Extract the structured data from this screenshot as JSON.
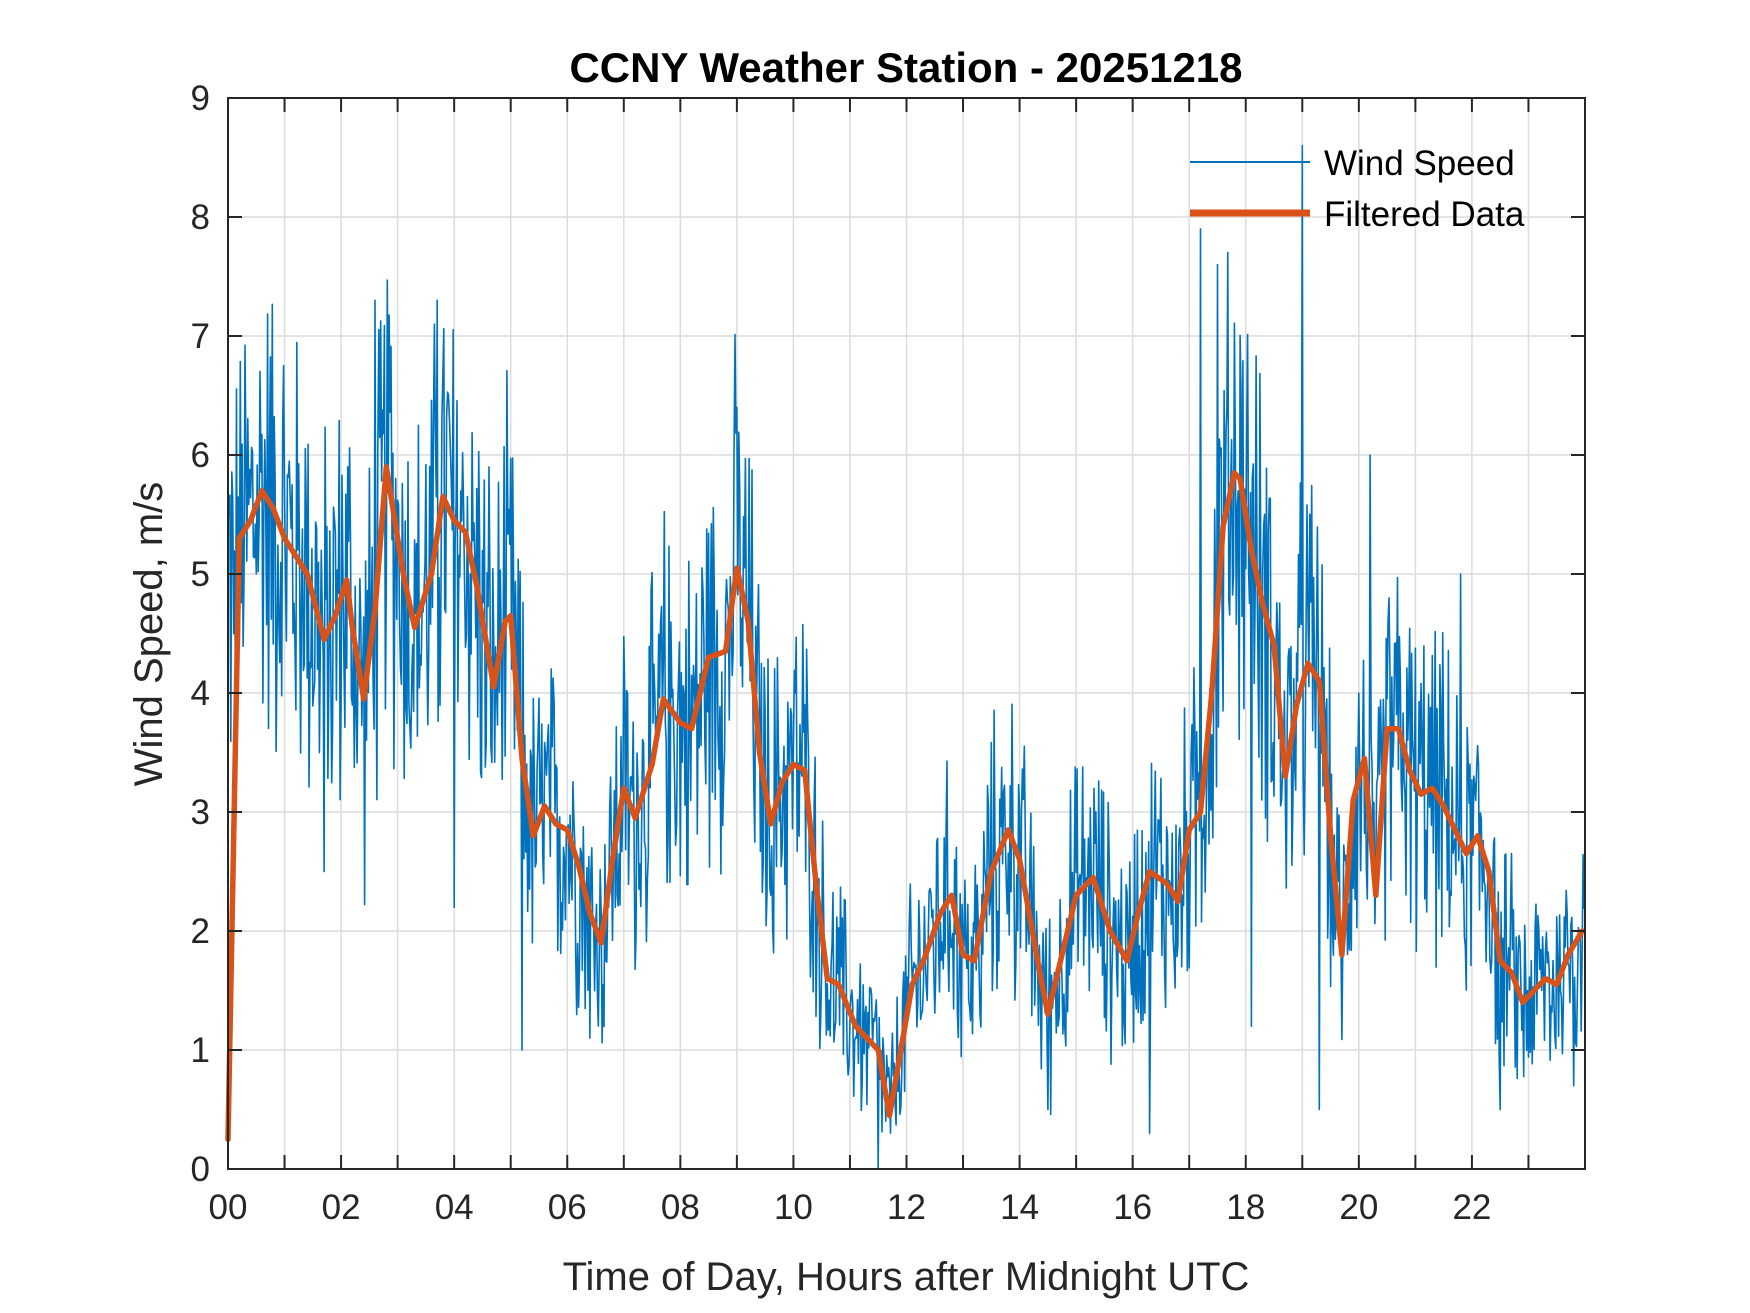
{
  "chart_data": {
    "type": "line",
    "title": "CCNY Weather Station - 20251218",
    "xlabel": "Time of Day, Hours after Midnight UTC",
    "ylabel": "Wind Speed, m/s",
    "xlim": [
      0,
      24
    ],
    "ylim": [
      0,
      9
    ],
    "grid": true,
    "legend_position": "top-right",
    "xticks": [
      0,
      2,
      4,
      6,
      8,
      10,
      12,
      14,
      16,
      18,
      20,
      22
    ],
    "xtick_labels": [
      "00",
      "02",
      "04",
      "06",
      "08",
      "10",
      "12",
      "14",
      "16",
      "18",
      "20",
      "22"
    ],
    "yticks": [
      0,
      1,
      2,
      3,
      4,
      5,
      6,
      7,
      8,
      9
    ],
    "ytick_labels": [
      "0",
      "1",
      "2",
      "3",
      "4",
      "5",
      "6",
      "7",
      "8",
      "9"
    ],
    "series": [
      {
        "name": "Wind Speed",
        "color": "#0072BD",
        "kind": "raw",
        "note": "High-frequency raw samples fluctuating around the filtered curve; approx. peaks listed",
        "peaks": [
          [
            2.6,
            7.3
          ],
          [
            3.7,
            7.3
          ],
          [
            9.0,
            6.4
          ],
          [
            17.2,
            7.9
          ],
          [
            17.5,
            7.6
          ],
          [
            18.1,
            7.3
          ],
          [
            19.0,
            8.6
          ],
          [
            20.2,
            6.0
          ],
          [
            21.8,
            5.0
          ]
        ],
        "troughs": [
          [
            0.1,
            4.5
          ],
          [
            1.7,
            2.5
          ],
          [
            4.0,
            2.2
          ],
          [
            5.2,
            1.0
          ],
          [
            6.4,
            1.1
          ],
          [
            11.5,
            0.0
          ],
          [
            13.3,
            1.3
          ],
          [
            14.5,
            0.5
          ],
          [
            16.3,
            0.3
          ],
          [
            18.1,
            1.2
          ],
          [
            19.3,
            0.5
          ],
          [
            22.5,
            0.5
          ],
          [
            23.8,
            0.7
          ]
        ]
      },
      {
        "name": "Filtered Data",
        "color": "#D95319",
        "kind": "filtered",
        "x": [
          0.0,
          0.2,
          0.4,
          0.6,
          0.8,
          1.0,
          1.2,
          1.4,
          1.7,
          1.9,
          2.1,
          2.2,
          2.4,
          2.6,
          2.8,
          2.9,
          3.1,
          3.3,
          3.6,
          3.8,
          4.0,
          4.2,
          4.4,
          4.7,
          4.9,
          5.0,
          5.2,
          5.4,
          5.6,
          5.8,
          6.0,
          6.2,
          6.4,
          6.6,
          6.8,
          7.0,
          7.2,
          7.5,
          7.7,
          8.0,
          8.2,
          8.5,
          8.8,
          9.0,
          9.2,
          9.4,
          9.6,
          9.8,
          10.0,
          10.2,
          10.4,
          10.6,
          10.8,
          11.1,
          11.3,
          11.5,
          11.7,
          11.9,
          12.1,
          12.3,
          12.6,
          12.8,
          13.0,
          13.2,
          13.5,
          13.8,
          14.0,
          14.3,
          14.5,
          14.8,
          15.0,
          15.3,
          15.6,
          15.9,
          16.1,
          16.3,
          16.6,
          16.8,
          17.0,
          17.2,
          17.4,
          17.6,
          17.8,
          17.9,
          18.1,
          18.3,
          18.5,
          18.7,
          18.9,
          19.1,
          19.3,
          19.5,
          19.7,
          19.9,
          20.1,
          20.3,
          20.5,
          20.7,
          20.9,
          21.1,
          21.3,
          21.5,
          21.7,
          21.9,
          22.1,
          22.3,
          22.5,
          22.7,
          22.9,
          23.1,
          23.3,
          23.5,
          23.7,
          23.95
        ],
        "y": [
          0.25,
          5.3,
          5.45,
          5.7,
          5.55,
          5.3,
          5.15,
          5.0,
          4.45,
          4.65,
          4.95,
          4.55,
          3.95,
          4.7,
          5.9,
          5.6,
          5.0,
          4.55,
          5.0,
          5.65,
          5.45,
          5.35,
          4.9,
          4.05,
          4.6,
          4.65,
          3.45,
          2.8,
          3.05,
          2.9,
          2.85,
          2.55,
          2.15,
          1.9,
          2.6,
          3.2,
          2.95,
          3.4,
          3.95,
          3.75,
          3.7,
          4.3,
          4.35,
          5.05,
          4.6,
          3.5,
          2.9,
          3.25,
          3.4,
          3.35,
          2.4,
          1.6,
          1.55,
          1.2,
          1.1,
          1.0,
          0.45,
          1.0,
          1.55,
          1.75,
          2.15,
          2.3,
          1.8,
          1.75,
          2.5,
          2.85,
          2.6,
          1.8,
          1.3,
          1.9,
          2.3,
          2.45,
          2.0,
          1.75,
          2.15,
          2.5,
          2.4,
          2.25,
          2.85,
          3.0,
          4.0,
          5.4,
          5.85,
          5.8,
          5.2,
          4.75,
          4.4,
          3.3,
          3.9,
          4.25,
          4.1,
          2.8,
          1.8,
          3.1,
          3.45,
          2.3,
          3.7,
          3.7,
          3.35,
          3.15,
          3.2,
          3.05,
          2.85,
          2.65,
          2.8,
          2.5,
          1.75,
          1.65,
          1.4,
          1.5,
          1.6,
          1.55,
          1.8,
          2.0
        ]
      }
    ]
  }
}
